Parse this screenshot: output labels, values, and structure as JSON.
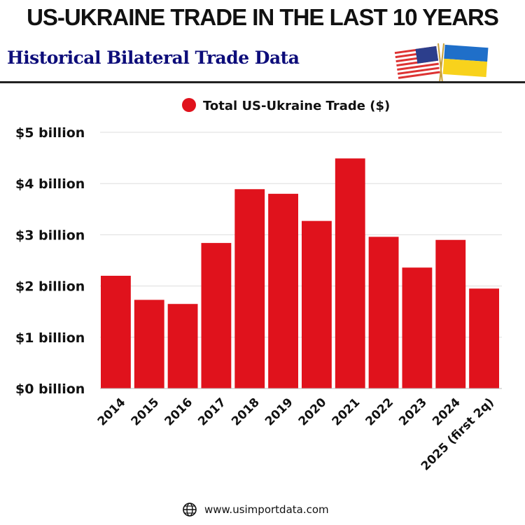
{
  "header": {
    "title": "US-UKRAINE TRADE IN THE LAST 10 YEARS",
    "subtitle": "Historical Bilateral Trade Data"
  },
  "footer": {
    "website": "www.usimportdata.com"
  },
  "chart_data": {
    "type": "bar",
    "categories": [
      "2014",
      "2015",
      "2016",
      "2017",
      "2018",
      "2019",
      "2020",
      "2021",
      "2022",
      "2023",
      "2024",
      "2025 (first 2q)"
    ],
    "series": [
      {
        "name": "Total US-Ukraine Trade ($)",
        "values": [
          2.2,
          1.73,
          1.65,
          2.84,
          3.89,
          3.8,
          3.27,
          4.49,
          2.96,
          2.36,
          2.9,
          1.95
        ],
        "color": "#e0121c"
      }
    ],
    "yunit": "billion",
    "ylim": [
      0,
      5
    ],
    "yticks": [
      "$0 billion",
      "$1 billion",
      "$2 billion",
      "$3 billion",
      "$4 billion",
      "$5 billion"
    ],
    "grid": true,
    "legend": "top"
  }
}
